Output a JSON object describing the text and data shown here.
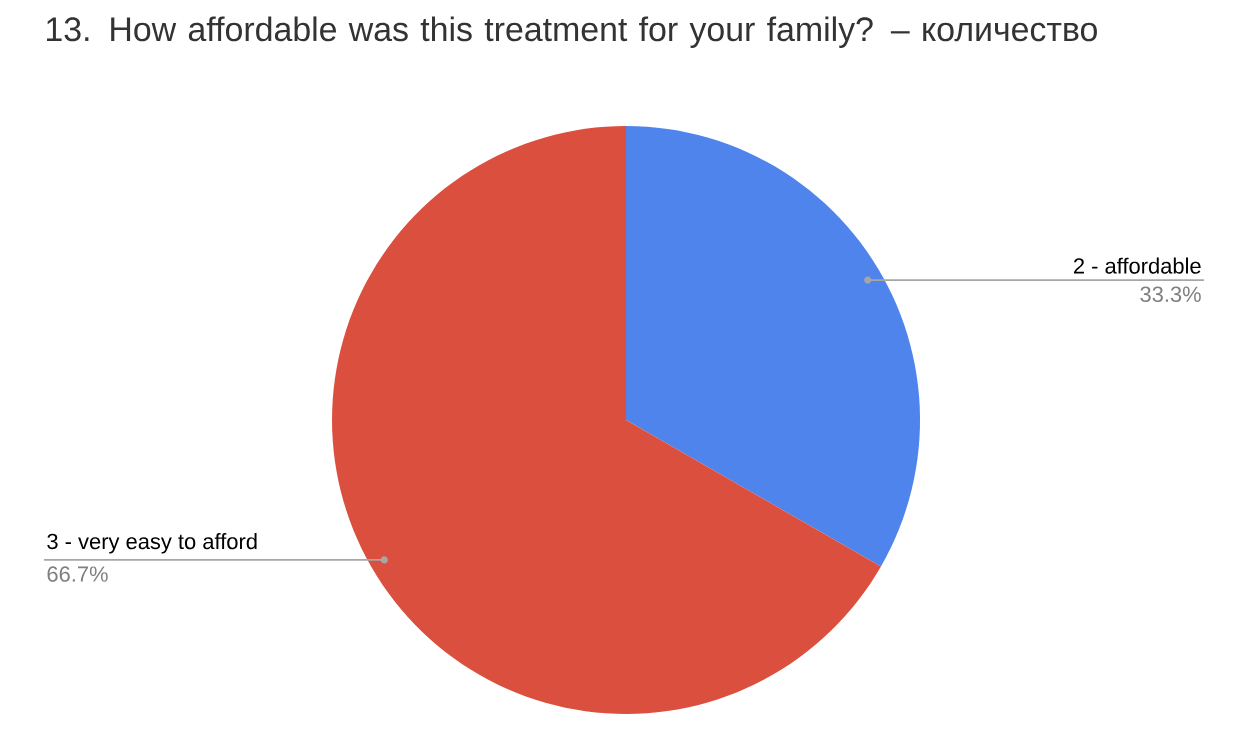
{
  "chart_data": {
    "type": "pie",
    "title": "13. How affordable was this treatment for your family? – количество",
    "categories": [
      "2 - affordable",
      "3 - very easy to afford"
    ],
    "values": [
      33.3,
      66.7
    ],
    "colors": [
      "#4f84ec",
      "#db4f3e"
    ],
    "value_labels": [
      "33.3%",
      "66.7%"
    ]
  }
}
